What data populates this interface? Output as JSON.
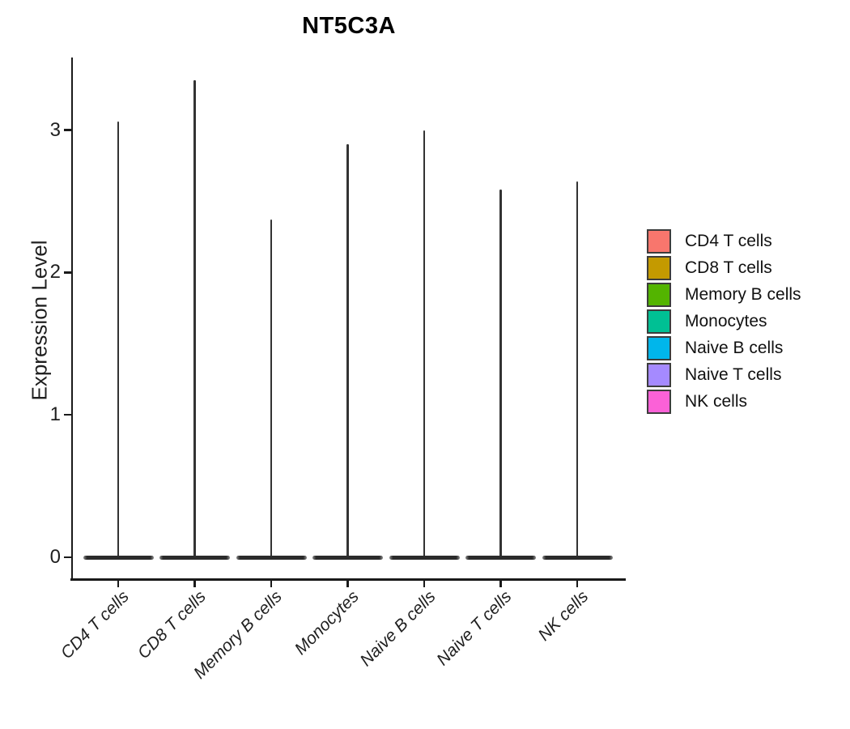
{
  "chart_data": {
    "type": "violin",
    "title": "NT5C3A",
    "ylabel": "Expression Level",
    "xlabel": "",
    "categories": [
      "CD4 T cells",
      "CD8 T cells",
      "Memory B cells",
      "Monocytes",
      "Naive B cells",
      "Naive T cells",
      "NK cells"
    ],
    "colors": [
      "#F8766D",
      "#C49A00",
      "#53B400",
      "#00C094",
      "#00B6EB",
      "#A58AFF",
      "#FB61D7"
    ],
    "series": [
      {
        "name": "CD4 T cells",
        "max_expression": 3.06,
        "mode_expression": 0
      },
      {
        "name": "CD8 T cells",
        "max_expression": 3.35,
        "mode_expression": 0
      },
      {
        "name": "Memory B cells",
        "max_expression": 2.37,
        "mode_expression": 0
      },
      {
        "name": "Monocytes",
        "max_expression": 2.9,
        "mode_expression": 0
      },
      {
        "name": "Naive B cells",
        "max_expression": 3.0,
        "mode_expression": 0
      },
      {
        "name": "Naive T cells",
        "max_expression": 2.58,
        "mode_expression": 0
      },
      {
        "name": "NK cells",
        "max_expression": 2.64,
        "mode_expression": 0
      }
    ],
    "yticks": [
      0,
      1,
      2,
      3
    ],
    "ylim": [
      0,
      3.5
    ],
    "grid": false,
    "legend_position": "right",
    "annotation": "Each violin is a thin spike: expression concentrated at 0 with a narrow tail to the maximum"
  }
}
